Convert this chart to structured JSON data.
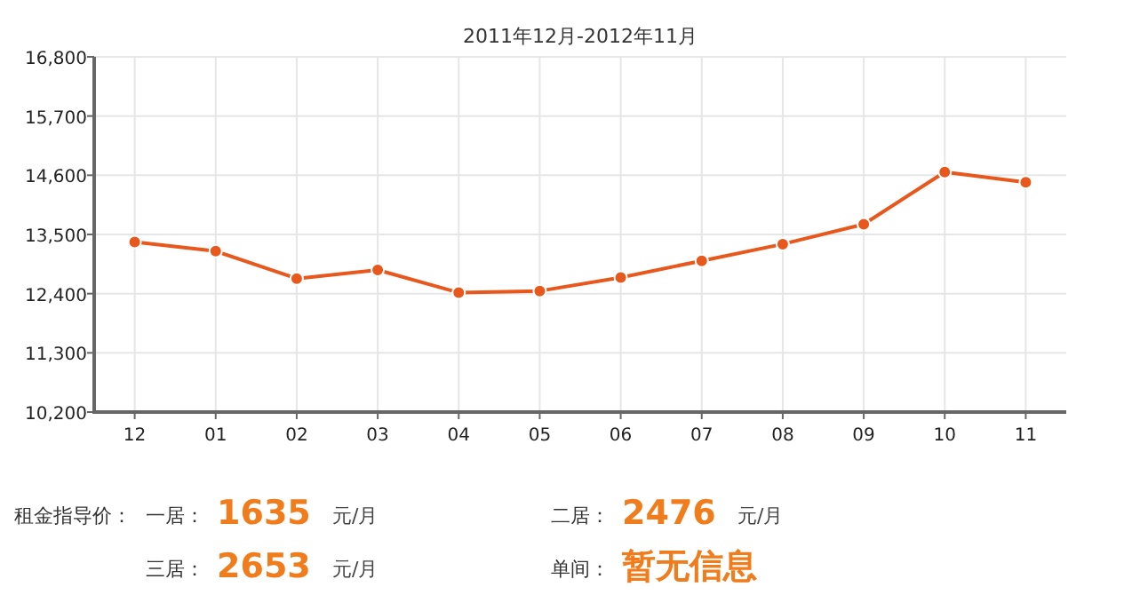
{
  "chart_data": {
    "type": "line",
    "title": "2011年12月-2012年11月",
    "categories": [
      "12",
      "01",
      "02",
      "03",
      "04",
      "05",
      "06",
      "07",
      "08",
      "09",
      "10",
      "11"
    ],
    "series": [
      {
        "color": "#e8581c",
        "values": [
          13360,
          13190,
          12680,
          12840,
          12420,
          12450,
          12700,
          13010,
          13320,
          13690,
          14660,
          14470
        ]
      }
    ],
    "ylim": [
      10200,
      16800
    ],
    "yticks": [
      {
        "value": 10200,
        "label": "10,200"
      },
      {
        "value": 11300,
        "label": "11,300"
      },
      {
        "value": 12400,
        "label": "12,400"
      },
      {
        "value": 13500,
        "label": "13,500"
      },
      {
        "value": 14600,
        "label": "14,600"
      },
      {
        "value": 15700,
        "label": "15,700"
      },
      {
        "value": 16800,
        "label": "16,800"
      }
    ],
    "grid": true,
    "marker": "circle",
    "line_style": "solid",
    "annotations": [
      "租金指导价：",
      "一居：",
      "1635",
      "元/月",
      "二居：",
      "2476",
      "元/月",
      "三居：",
      "2653",
      "元/月",
      "单间：",
      "暂无信息"
    ]
  }
}
